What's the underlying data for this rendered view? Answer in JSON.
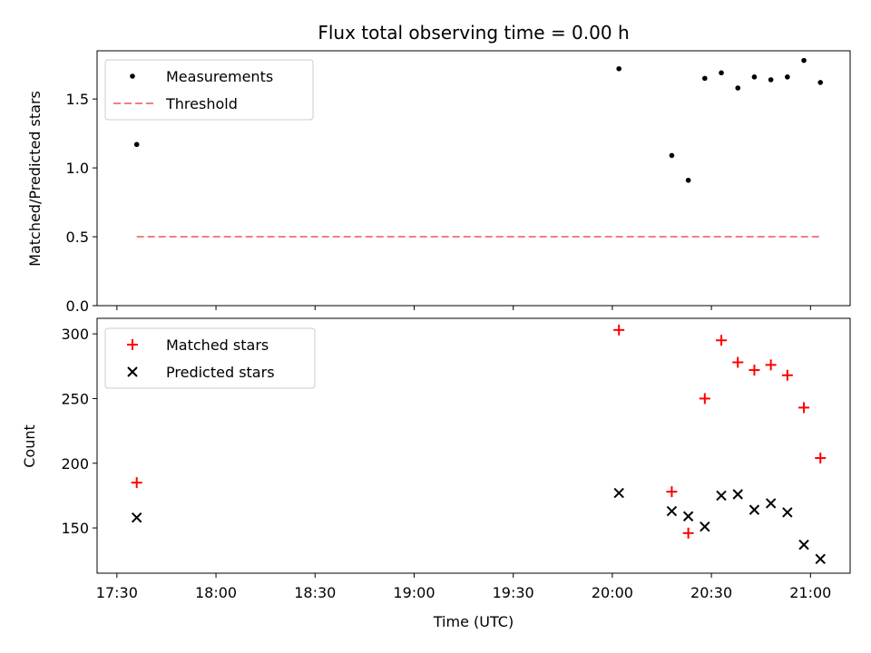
{
  "chart_data": [
    {
      "type": "scatter",
      "title": "Flux total observing time = 0.00 h",
      "ylabel": "Matched/Predicted stars",
      "xlabel": "",
      "ylim": [
        0,
        1.85
      ],
      "xlim": [
        "17:24",
        "21:12"
      ],
      "yticks": [
        0.0,
        0.5,
        1.0,
        1.5
      ],
      "ytick_labels": [
        "0.0",
        "0.5",
        "1.0",
        "1.5"
      ],
      "x_tick_labels_shown": false,
      "legend_position": "upper left",
      "series": [
        {
          "name": "Measurements",
          "marker": "dot",
          "color": "#000000",
          "x": [
            "17:36",
            "20:02",
            "20:18",
            "20:23",
            "20:28",
            "20:33",
            "20:38",
            "20:43",
            "20:48",
            "20:53",
            "20:58",
            "21:03"
          ],
          "y": [
            1.17,
            1.72,
            1.09,
            0.91,
            1.65,
            1.69,
            1.58,
            1.66,
            1.64,
            1.66,
            1.78,
            1.62
          ]
        },
        {
          "name": "Threshold",
          "style": "dashed-line",
          "color": "#f08080",
          "x": [
            "17:36",
            "21:03"
          ],
          "y": [
            0.5,
            0.5
          ]
        }
      ]
    },
    {
      "type": "scatter",
      "title": "",
      "ylabel": "Count",
      "xlabel": "Time (UTC)",
      "ylim": [
        115,
        312
      ],
      "xlim": [
        "17:24",
        "21:12"
      ],
      "yticks": [
        150,
        200,
        250,
        300
      ],
      "ytick_labels": [
        "150",
        "200",
        "250",
        "300"
      ],
      "xticks": [
        "17:30",
        "18:00",
        "18:30",
        "19:00",
        "19:30",
        "20:00",
        "20:30",
        "21:00"
      ],
      "xtick_labels": [
        "17:30",
        "18:00",
        "18:30",
        "19:00",
        "19:30",
        "20:00",
        "20:30",
        "21:00"
      ],
      "legend_position": "upper left",
      "series": [
        {
          "name": "Matched stars",
          "marker": "plus",
          "color": "#ff0000",
          "x": [
            "17:36",
            "20:02",
            "20:18",
            "20:23",
            "20:28",
            "20:33",
            "20:38",
            "20:43",
            "20:48",
            "20:53",
            "20:58",
            "21:03"
          ],
          "y": [
            185,
            303,
            178,
            146,
            250,
            295,
            278,
            272,
            276,
            268,
            243,
            204
          ]
        },
        {
          "name": "Predicted stars",
          "marker": "x",
          "color": "#000000",
          "x": [
            "17:36",
            "20:02",
            "20:18",
            "20:23",
            "20:28",
            "20:33",
            "20:38",
            "20:43",
            "20:48",
            "20:53",
            "20:58",
            "21:03"
          ],
          "y": [
            158,
            177,
            163,
            159,
            151,
            175,
            176,
            164,
            169,
            162,
            137,
            126
          ]
        }
      ]
    }
  ]
}
